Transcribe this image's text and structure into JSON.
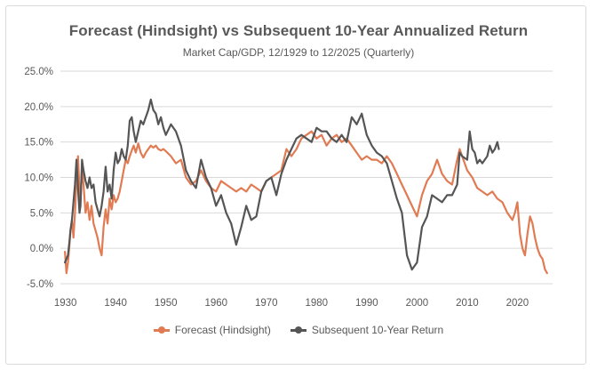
{
  "chart_data": {
    "type": "line",
    "title": "Forecast (Hindsight) vs Subsequent 10-Year Annualized Return",
    "subtitle": "Market Cap/GDP, 12/1929 to 12/2025 (Quarterly)",
    "xlim": [
      1929,
      2027
    ],
    "ylim": [
      -5,
      25
    ],
    "y_ticks": [
      -5,
      0,
      5,
      10,
      15,
      20,
      25
    ],
    "y_tick_labels": [
      "-5.0%",
      "0.0%",
      "5.0%",
      "10.0%",
      "15.0%",
      "20.0%",
      "25.0%"
    ],
    "x_ticks": [
      1930,
      1940,
      1950,
      1960,
      1970,
      1980,
      1990,
      2000,
      2010,
      2020
    ],
    "x_tick_labels": [
      "1930",
      "1940",
      "1950",
      "1960",
      "1970",
      "1980",
      "1990",
      "2000",
      "2010",
      "2020"
    ],
    "grid": "horizontal",
    "legend_position": "bottom",
    "series": [
      {
        "name": "Forecast (Hindsight)",
        "color": "#e07b53",
        "x": [
          1929.9,
          1930.2,
          1930.5,
          1930.8,
          1931.0,
          1931.3,
          1931.6,
          1931.9,
          1932.2,
          1932.5,
          1932.8,
          1933.0,
          1933.3,
          1933.6,
          1934.0,
          1934.4,
          1934.8,
          1935.2,
          1935.6,
          1936.0,
          1936.4,
          1936.8,
          1937.2,
          1937.6,
          1938.0,
          1938.4,
          1938.8,
          1939.2,
          1939.6,
          1940.0,
          1940.4,
          1940.8,
          1941.2,
          1941.6,
          1942.0,
          1942.4,
          1942.8,
          1943.2,
          1943.6,
          1944.0,
          1944.5,
          1945.0,
          1945.5,
          1946.0,
          1946.5,
          1947.0,
          1947.5,
          1948.0,
          1948.5,
          1949.0,
          1949.5,
          1950.0,
          1951.0,
          1952.0,
          1953.0,
          1954.0,
          1955.0,
          1956.0,
          1957.0,
          1958.0,
          1959.0,
          1960.0,
          1961.0,
          1962.0,
          1963.0,
          1964.0,
          1965.0,
          1966.0,
          1967.0,
          1968.0,
          1969.0,
          1970.0,
          1971.0,
          1972.0,
          1973.0,
          1974.0,
          1975.0,
          1976.0,
          1977.0,
          1978.0,
          1979.0,
          1980.0,
          1981.0,
          1982.0,
          1983.0,
          1984.0,
          1985.0,
          1986.0,
          1987.0,
          1988.0,
          1989.0,
          1990.0,
          1991.0,
          1992.0,
          1993.0,
          1994.0,
          1995.0,
          1996.0,
          1997.0,
          1998.0,
          1999.0,
          2000.0,
          2001.0,
          2002.0,
          2003.0,
          2004.0,
          2005.0,
          2006.0,
          2007.0,
          2008.0,
          2008.5,
          2009.0,
          2010.0,
          2011.0,
          2012.0,
          2013.0,
          2014.0,
          2015.0,
          2016.0,
          2017.0,
          2018.0,
          2019.0,
          2019.5,
          2020.0,
          2020.5,
          2021.0,
          2021.5,
          2022.0,
          2022.5,
          2023.0,
          2023.5,
          2024.0,
          2024.5,
          2025.0,
          2025.5,
          2025.9
        ],
        "values": [
          -0.5,
          -3.5,
          -2.0,
          0.5,
          2.5,
          4.0,
          1.5,
          5.0,
          9.5,
          13.0,
          8.0,
          6.5,
          11.5,
          9.0,
          5.0,
          6.5,
          4.0,
          6.0,
          3.5,
          2.5,
          1.5,
          0.0,
          -1.0,
          3.0,
          5.5,
          3.5,
          7.0,
          5.5,
          7.5,
          6.5,
          7.0,
          8.0,
          9.5,
          11.0,
          12.5,
          12.0,
          13.0,
          13.8,
          14.5,
          13.5,
          14.8,
          13.5,
          12.8,
          13.5,
          14.0,
          14.5,
          14.2,
          14.5,
          14.0,
          13.8,
          14.0,
          13.7,
          13.0,
          12.0,
          12.5,
          10.0,
          9.0,
          9.5,
          11.0,
          9.5,
          8.5,
          8.0,
          9.5,
          9.0,
          8.5,
          8.0,
          8.5,
          8.0,
          9.0,
          8.5,
          8.0,
          9.5,
          10.0,
          10.5,
          11.0,
          14.0,
          13.0,
          14.0,
          15.5,
          16.0,
          16.5,
          15.5,
          16.0,
          14.5,
          15.5,
          16.0,
          15.0,
          15.5,
          14.5,
          13.5,
          12.5,
          13.0,
          12.5,
          12.5,
          12.0,
          13.0,
          12.0,
          10.5,
          9.0,
          7.5,
          6.0,
          4.5,
          7.5,
          9.5,
          10.5,
          12.5,
          10.5,
          9.5,
          9.0,
          12.5,
          14.0,
          13.0,
          11.0,
          10.0,
          8.5,
          8.0,
          7.5,
          8.0,
          7.0,
          6.5,
          5.0,
          4.0,
          5.0,
          6.5,
          2.0,
          0.0,
          -1.0,
          2.0,
          4.5,
          3.5,
          1.5,
          0.0,
          -1.0,
          -1.5,
          -3.0,
          -3.5
        ]
      },
      {
        "name": "Subsequent 10-Year Return",
        "color": "#555555",
        "x": [
          1929.9,
          1930.2,
          1930.5,
          1930.8,
          1931.0,
          1931.3,
          1931.6,
          1931.9,
          1932.2,
          1932.5,
          1932.8,
          1933.0,
          1933.3,
          1933.6,
          1934.0,
          1934.4,
          1934.8,
          1935.2,
          1935.6,
          1936.0,
          1936.4,
          1936.8,
          1937.2,
          1937.6,
          1938.0,
          1938.4,
          1938.8,
          1939.2,
          1939.6,
          1940.0,
          1940.4,
          1940.8,
          1941.2,
          1941.6,
          1942.0,
          1942.4,
          1942.8,
          1943.2,
          1943.6,
          1944.0,
          1944.5,
          1945.0,
          1945.5,
          1946.0,
          1946.5,
          1947.0,
          1947.5,
          1948.0,
          1948.5,
          1949.0,
          1949.5,
          1950.0,
          1951.0,
          1952.0,
          1953.0,
          1954.0,
          1955.0,
          1956.0,
          1957.0,
          1958.0,
          1959.0,
          1960.0,
          1961.0,
          1962.0,
          1963.0,
          1964.0,
          1965.0,
          1966.0,
          1967.0,
          1968.0,
          1969.0,
          1970.0,
          1971.0,
          1972.0,
          1973.0,
          1974.0,
          1975.0,
          1976.0,
          1977.0,
          1978.0,
          1979.0,
          1980.0,
          1981.0,
          1982.0,
          1983.0,
          1984.0,
          1985.0,
          1986.0,
          1987.0,
          1988.0,
          1989.0,
          1990.0,
          1991.0,
          1992.0,
          1993.0,
          1994.0,
          1995.0,
          1996.0,
          1997.0,
          1998.0,
          1999.0,
          2000.0,
          2001.0,
          2002.0,
          2003.0,
          2004.0,
          2005.0,
          2006.0,
          2007.0,
          2008.0,
          2008.5,
          2009.0,
          2010.0,
          2010.5,
          2011.0,
          2011.5,
          2012.0,
          2012.5,
          2013.0,
          2013.5,
          2014.0,
          2014.5,
          2015.0,
          2015.5,
          2016.0,
          2016.3
        ],
        "values": [
          -2.0,
          -1.5,
          -1.0,
          1.0,
          2.5,
          4.0,
          6.5,
          9.0,
          12.5,
          8.5,
          5.0,
          6.0,
          12.5,
          11.0,
          9.5,
          8.5,
          10.0,
          8.5,
          9.0,
          6.5,
          5.5,
          4.5,
          6.0,
          8.0,
          11.5,
          8.0,
          9.0,
          7.0,
          11.0,
          13.5,
          12.0,
          12.5,
          14.0,
          13.0,
          12.5,
          14.5,
          18.0,
          18.5,
          16.5,
          15.0,
          16.5,
          18.0,
          17.5,
          18.5,
          19.5,
          21.0,
          19.5,
          19.0,
          17.5,
          18.5,
          17.0,
          16.0,
          17.5,
          16.5,
          14.5,
          11.0,
          9.5,
          8.5,
          12.5,
          10.0,
          8.5,
          6.0,
          7.5,
          5.0,
          3.5,
          0.5,
          3.0,
          6.0,
          4.0,
          4.5,
          8.0,
          9.5,
          10.0,
          7.5,
          10.5,
          12.5,
          14.0,
          15.5,
          16.0,
          15.5,
          15.0,
          17.0,
          16.5,
          16.5,
          15.5,
          15.0,
          16.0,
          15.0,
          18.5,
          17.5,
          19.0,
          16.0,
          14.5,
          13.5,
          13.0,
          12.0,
          9.5,
          7.0,
          5.0,
          -1.0,
          -3.0,
          -2.0,
          3.0,
          4.5,
          7.5,
          7.0,
          6.5,
          7.5,
          7.5,
          9.0,
          13.5,
          13.0,
          12.5,
          16.5,
          14.0,
          13.5,
          12.0,
          12.5,
          12.0,
          12.5,
          13.0,
          14.5,
          13.5,
          14.0,
          15.0,
          14.0
        ]
      }
    ]
  }
}
